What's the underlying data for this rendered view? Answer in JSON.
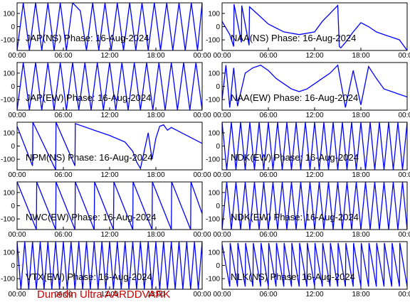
{
  "footer": "Dunedin Ultra AARDDVARK",
  "colors": {
    "trace": "#0000ff",
    "footer": "#cc0000",
    "axis": "#000000"
  },
  "chart_data": [
    {
      "type": "line",
      "title": "JAP(NS) Phase: 16-Aug-2024",
      "x_ticks": [
        "00:00",
        "06:00",
        "12:00",
        "18:00",
        "00:00"
      ],
      "y_ticks": [
        "100",
        "0",
        "-100"
      ],
      "ylim": [
        -180,
        180
      ],
      "xlim": [
        0,
        24
      ],
      "series": [
        {
          "x": [
            0,
            0.8,
            1.6,
            2.4,
            3.2,
            4,
            4.8,
            5.6,
            6.4,
            7.2,
            8.2,
            9,
            9.8,
            10.6,
            11.4,
            12.2,
            13,
            13.8,
            14.6,
            15.4,
            16.2,
            17,
            17.8,
            18.6,
            19.4,
            20.2,
            21,
            21.8,
            22.6,
            23.4,
            24
          ],
          "y": [
            -180,
            180,
            -180,
            180,
            -180,
            180,
            -180,
            180,
            -180,
            180,
            120,
            -180,
            180,
            -180,
            180,
            -180,
            180,
            -180,
            180,
            -180,
            180,
            -180,
            180,
            -180,
            180,
            -180,
            180,
            -180,
            180,
            -180,
            180
          ]
        }
      ]
    },
    {
      "type": "line",
      "title": "NAA(NS) Phase: 16-Aug-2024",
      "x_ticks": [
        "00:00",
        "06:00",
        "12:00",
        "18:00",
        "00:00"
      ],
      "y_ticks": [
        "100",
        "0",
        "-100"
      ],
      "ylim": [
        -180,
        180
      ],
      "xlim": [
        0,
        24
      ],
      "series": [
        {
          "x": [
            0,
            1,
            1.5,
            1.55,
            2.5,
            2.55,
            3.5,
            3.55,
            4.5,
            6,
            8,
            10,
            12,
            13,
            14,
            15,
            15.2,
            15.4,
            16,
            17,
            18,
            19,
            20,
            21,
            22,
            23,
            24
          ],
          "y": [
            40,
            -60,
            -150,
            170,
            -120,
            160,
            -140,
            150,
            100,
            20,
            -40,
            -60,
            -40,
            40,
            100,
            160,
            -150,
            -160,
            -120,
            -40,
            30,
            0,
            -40,
            -60,
            -80,
            -100,
            -180
          ]
        }
      ]
    },
    {
      "type": "line",
      "title": "JAP(EW) Phase: 16-Aug-2024",
      "x_ticks": [
        "00:00",
        "06:00",
        "12:00",
        "18:00",
        "00:00"
      ],
      "y_ticks": [
        "100",
        "0",
        "-100"
      ],
      "ylim": [
        -180,
        180
      ],
      "xlim": [
        0,
        24
      ],
      "series": [
        {
          "x": [
            0,
            0.8,
            1.6,
            2.4,
            3.2,
            4,
            4.8,
            5.6,
            6.4,
            7.2,
            8,
            8.8,
            9.6,
            10.4,
            11.2,
            12,
            12.8,
            13.6,
            14.4,
            15.2,
            16,
            16.8,
            17.6,
            18.4,
            19.2,
            20,
            20.8,
            21.6,
            22.4,
            23.2,
            24
          ],
          "y": [
            -180,
            180,
            -180,
            180,
            -180,
            180,
            -180,
            180,
            -180,
            180,
            -180,
            180,
            -180,
            180,
            -180,
            180,
            -180,
            180,
            -180,
            180,
            -180,
            180,
            -180,
            180,
            -180,
            180,
            -180,
            180,
            -180,
            180,
            -180
          ]
        }
      ]
    },
    {
      "type": "line",
      "title": "NAA(EW) Phase: 16-Aug-2024",
      "x_ticks": [
        "00:00",
        "06:00",
        "12:00",
        "18:00",
        "00:00"
      ],
      "y_ticks": [
        "100",
        "0",
        "-100"
      ],
      "ylim": [
        -180,
        180
      ],
      "xlim": [
        0,
        24
      ],
      "series": [
        {
          "x": [
            0,
            0.5,
            1,
            1.5,
            2,
            3,
            4,
            5,
            6,
            7,
            8,
            9,
            10,
            11,
            12,
            13,
            14,
            15,
            16,
            17,
            18,
            19,
            20,
            21,
            22,
            23,
            24
          ],
          "y": [
            -100,
            160,
            -160,
            140,
            -150,
            100,
            140,
            160,
            120,
            60,
            20,
            -20,
            -40,
            -20,
            20,
            60,
            100,
            160,
            -160,
            120,
            -140,
            150,
            60,
            -20,
            -40,
            -60,
            -80
          ]
        }
      ]
    },
    {
      "type": "line",
      "title": "NPM(NS) Phase: 16-Aug-2024",
      "x_ticks": [
        "00:00",
        "06:00",
        "12:00",
        "18:00",
        "00:00"
      ],
      "y_ticks": [
        "100",
        "0",
        "-100"
      ],
      "ylim": [
        -180,
        180
      ],
      "xlim": [
        0,
        24
      ],
      "series": [
        {
          "x": [
            0,
            2,
            2.05,
            5,
            5.05,
            7.5,
            7.55,
            8,
            10,
            12,
            14,
            15,
            15.5,
            16,
            17,
            17.5,
            18,
            18.5,
            19,
            19.5,
            20,
            22,
            24
          ],
          "y": [
            150,
            -150,
            180,
            -180,
            180,
            -150,
            170,
            160,
            120,
            80,
            30,
            -40,
            -120,
            -170,
            100,
            -100,
            60,
            150,
            160,
            120,
            140,
            80,
            20
          ]
        }
      ]
    },
    {
      "type": "line",
      "title": "NDK(EW) Phase: 16-Aug-2024",
      "x_ticks": [
        "00:00",
        "06:00",
        "12:00",
        "18:00",
        "00:00"
      ],
      "y_ticks": [
        "100",
        "0",
        "-100"
      ],
      "ylim": [
        -180,
        180
      ],
      "xlim": [
        0,
        24
      ],
      "series": [
        {
          "x": [
            0,
            0.6,
            1.2,
            1.8,
            2.4,
            3,
            3.6,
            4.2,
            4.8,
            5.4,
            6,
            6.6,
            7.2,
            7.8,
            8.4,
            9,
            9.6,
            10.2,
            10.8,
            11.4,
            12,
            12.6,
            13.2,
            13.8,
            14.4,
            15,
            15.6,
            16.2,
            16.8,
            17.4,
            18,
            18.6,
            19.2,
            19.8,
            20.4,
            21,
            21.6,
            22.2,
            22.8,
            23.4,
            24
          ],
          "y": [
            180,
            -180,
            180,
            -180,
            180,
            -180,
            180,
            -180,
            180,
            -180,
            180,
            -180,
            180,
            -180,
            180,
            -180,
            180,
            -180,
            180,
            -180,
            180,
            -180,
            180,
            -180,
            180,
            -180,
            180,
            -180,
            180,
            -180,
            180,
            -180,
            180,
            -180,
            180,
            -180,
            180,
            -180,
            180,
            -180,
            180
          ]
        }
      ]
    },
    {
      "type": "line",
      "title": "NWC(EW) Phase: 16-Aug-2024",
      "x_ticks": [
        "00:00",
        "06:00",
        "12:00",
        "18:00",
        "00:00"
      ],
      "y_ticks": [
        "100",
        "0",
        "-100"
      ],
      "ylim": [
        -180,
        180
      ],
      "xlim": [
        0,
        24
      ],
      "series": [
        {
          "x": [
            0,
            2.5,
            2.55,
            5,
            5.05,
            7.5,
            7.55,
            10,
            10.05,
            12.5,
            12.55,
            15,
            15.05,
            17.5,
            17.55,
            20,
            20.05,
            22.5,
            22.55,
            24
          ],
          "y": [
            180,
            -180,
            180,
            -180,
            180,
            -180,
            180,
            -180,
            180,
            -180,
            180,
            -180,
            180,
            -180,
            180,
            -180,
            180,
            -180,
            180,
            -60
          ]
        }
      ]
    },
    {
      "type": "line",
      "title": "NDK(EW) Phase: 16-Aug-2024",
      "x_ticks": [
        "00:00",
        "06:00",
        "12:00",
        "18:00",
        "00:00"
      ],
      "y_ticks": [
        "100",
        "0",
        "-100"
      ],
      "ylim": [
        -180,
        180
      ],
      "xlim": [
        0,
        24
      ],
      "series": [
        {
          "x": [
            0,
            0.6,
            1.2,
            1.8,
            2.4,
            3,
            3.6,
            4.2,
            4.8,
            5.4,
            6,
            6.6,
            7.2,
            7.8,
            8.4,
            9,
            9.6,
            10.2,
            10.8,
            11.4,
            12,
            12.6,
            13.2,
            13.8,
            14.4,
            15,
            15.6,
            16.2,
            16.8,
            17.4,
            18,
            18.6,
            19.2,
            19.8,
            20.4,
            21,
            21.6,
            22.2,
            22.8,
            23.4,
            24
          ],
          "y": [
            -180,
            180,
            -180,
            180,
            -180,
            180,
            -180,
            180,
            -180,
            180,
            -180,
            180,
            -180,
            180,
            -180,
            180,
            -180,
            180,
            -180,
            180,
            -180,
            180,
            -180,
            180,
            -180,
            180,
            -180,
            180,
            -180,
            180,
            -180,
            180,
            -180,
            180,
            -180,
            180,
            -180,
            180,
            -180,
            180,
            -180
          ]
        }
      ]
    },
    {
      "type": "line",
      "title": "VTX(EW) Phase: 16-Aug-2024",
      "x_ticks": [
        "00:00",
        "06:00",
        "12:00",
        "18:00",
        "00:00"
      ],
      "y_ticks": [
        "100",
        "0",
        "-100"
      ],
      "ylim": [
        -180,
        180
      ],
      "xlim": [
        0,
        24
      ],
      "series": [
        {
          "x": [
            0,
            0.5,
            1,
            1.5,
            2,
            2.5,
            3,
            3.5,
            4,
            4.5,
            5,
            5.5,
            6,
            6.5,
            7,
            7.5,
            8,
            8.5,
            9,
            9.5,
            10,
            10.5,
            11,
            11.5,
            12,
            12.5,
            13,
            13.5,
            14,
            14.5,
            15,
            15.5,
            16,
            16.5,
            17,
            17.5,
            18,
            18.5,
            19,
            19.5,
            20,
            20.5,
            21,
            21.5,
            22,
            22.5,
            23,
            23.5,
            24
          ],
          "y": [
            180,
            -180,
            180,
            -180,
            180,
            -180,
            180,
            -180,
            180,
            -180,
            180,
            -180,
            180,
            -180,
            180,
            -180,
            180,
            -180,
            180,
            -180,
            180,
            -180,
            180,
            -180,
            180,
            -180,
            180,
            -180,
            180,
            -180,
            180,
            -180,
            180,
            -180,
            180,
            -180,
            180,
            -180,
            180,
            -180,
            180,
            -180,
            180,
            -180,
            180,
            -180,
            180,
            -180,
            180
          ]
        }
      ]
    },
    {
      "type": "line",
      "title": "NLK(NS) Phase: 16-Aug-2024",
      "x_ticks": [
        "00:00",
        "06:00",
        "12:00",
        "18:00",
        "00:00"
      ],
      "y_ticks": [
        "100",
        "0",
        "-100"
      ],
      "ylim": [
        -180,
        180
      ],
      "xlim": [
        0,
        24
      ],
      "series": [
        {
          "x": [
            0,
            1,
            1.05,
            2,
            2.05,
            3,
            3.05,
            4,
            4.05,
            5,
            5.05,
            6,
            6.05,
            7,
            7.05,
            8,
            8.05,
            9,
            9.05,
            10,
            10.05,
            11,
            11.05,
            12,
            12.05,
            13,
            13.05,
            14,
            14.05,
            15,
            15.05,
            16,
            16.05,
            17,
            17.05,
            18,
            18.05,
            19,
            19.05,
            20,
            20.05,
            21,
            21.05,
            22,
            22.05,
            23,
            23.05,
            24
          ],
          "y": [
            160,
            -160,
            170,
            -160,
            170,
            -160,
            170,
            -160,
            170,
            -160,
            170,
            -160,
            170,
            -160,
            170,
            -160,
            170,
            -160,
            170,
            -160,
            170,
            -160,
            170,
            -160,
            170,
            -160,
            170,
            -160,
            170,
            -160,
            170,
            -160,
            170,
            -160,
            170,
            -160,
            170,
            -160,
            170,
            -160,
            170,
            -160,
            170,
            -160,
            170,
            -160,
            170,
            -160
          ]
        }
      ]
    }
  ]
}
